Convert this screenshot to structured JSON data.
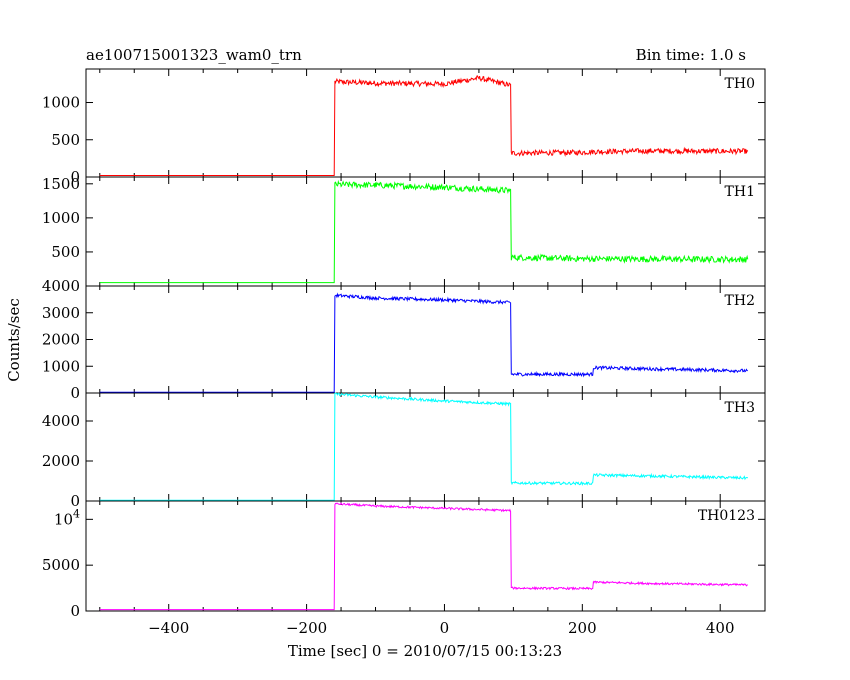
{
  "header": {
    "title": "ae100715001323_wam0_trn",
    "bin_time": "Bin time: 1.0 s"
  },
  "xlabel": "Time [sec] 0 = 2010/07/15 00:13:23",
  "ylabel": "Counts/sec",
  "chart_data": {
    "type": "line",
    "title": "ae100715001323_wam0_trn",
    "xlabel": "Time [sec] 0 = 2010/07/15 00:13:23",
    "ylabel": "Counts/sec",
    "xlim": [
      -520,
      465
    ],
    "x_ticks": [
      -400,
      -200,
      0,
      200,
      400
    ],
    "grid": false,
    "series": [
      {
        "name": "TH0",
        "color": "#ff0000",
        "ylim": [
          0,
          1450
        ],
        "yticks": [
          0,
          500,
          1000
        ],
        "ytick_labels": [
          "0",
          "500",
          "1000"
        ],
        "x": [
          -500,
          -160,
          -159,
          -100,
          0,
          50,
          96,
          97,
          200,
          215,
          300,
          440
        ],
        "values": [
          20,
          20,
          1280,
          1260,
          1250,
          1330,
          1230,
          320,
          330,
          340,
          350,
          345
        ],
        "noise": 35
      },
      {
        "name": "TH1",
        "color": "#00ff00",
        "ylim": [
          0,
          1600
        ],
        "yticks": [
          0,
          500,
          1000,
          1500
        ],
        "ytick_labels": [
          "",
          "500",
          "1000",
          "1500"
        ],
        "x": [
          -500,
          -160,
          -159,
          -100,
          0,
          96,
          97,
          200,
          440
        ],
        "values": [
          50,
          50,
          1490,
          1480,
          1450,
          1400,
          420,
          400,
          390
        ],
        "noise": 45
      },
      {
        "name": "TH2",
        "color": "#0000ff",
        "ylim": [
          0,
          4000
        ],
        "yticks": [
          0,
          1000,
          2000,
          3000,
          4000
        ],
        "ytick_labels": [
          "0",
          "1000",
          "2000",
          "3000",
          "4000"
        ],
        "x": [
          -500,
          -160,
          -159,
          -100,
          0,
          96,
          97,
          200,
          215,
          216,
          300,
          440
        ],
        "values": [
          30,
          30,
          3650,
          3550,
          3480,
          3380,
          700,
          700,
          700,
          950,
          900,
          830
        ],
        "noise": 60
      },
      {
        "name": "TH3",
        "color": "#00ffff",
        "ylim": [
          0,
          5400
        ],
        "yticks": [
          0,
          2000,
          4000
        ],
        "ytick_labels": [
          "0",
          "2000",
          "4000"
        ],
        "x": [
          -500,
          -160,
          -159,
          -100,
          0,
          96,
          97,
          200,
          215,
          216,
          300,
          440
        ],
        "values": [
          40,
          40,
          5350,
          5200,
          5000,
          4850,
          900,
          880,
          880,
          1300,
          1250,
          1150
        ],
        "noise": 65
      },
      {
        "name": "TH0123",
        "color": "#ff00ff",
        "ylim": [
          0,
          12000
        ],
        "yticks": [
          0,
          5000,
          10000
        ],
        "ytick_labels": [
          "0",
          "5000",
          "10^4"
        ],
        "x": [
          -500,
          -160,
          -159,
          -100,
          0,
          96,
          97,
          200,
          215,
          216,
          300,
          440
        ],
        "values": [
          150,
          150,
          11700,
          11450,
          11200,
          10950,
          2500,
          2450,
          2450,
          3150,
          3000,
          2850
        ],
        "noise": 110
      }
    ]
  }
}
